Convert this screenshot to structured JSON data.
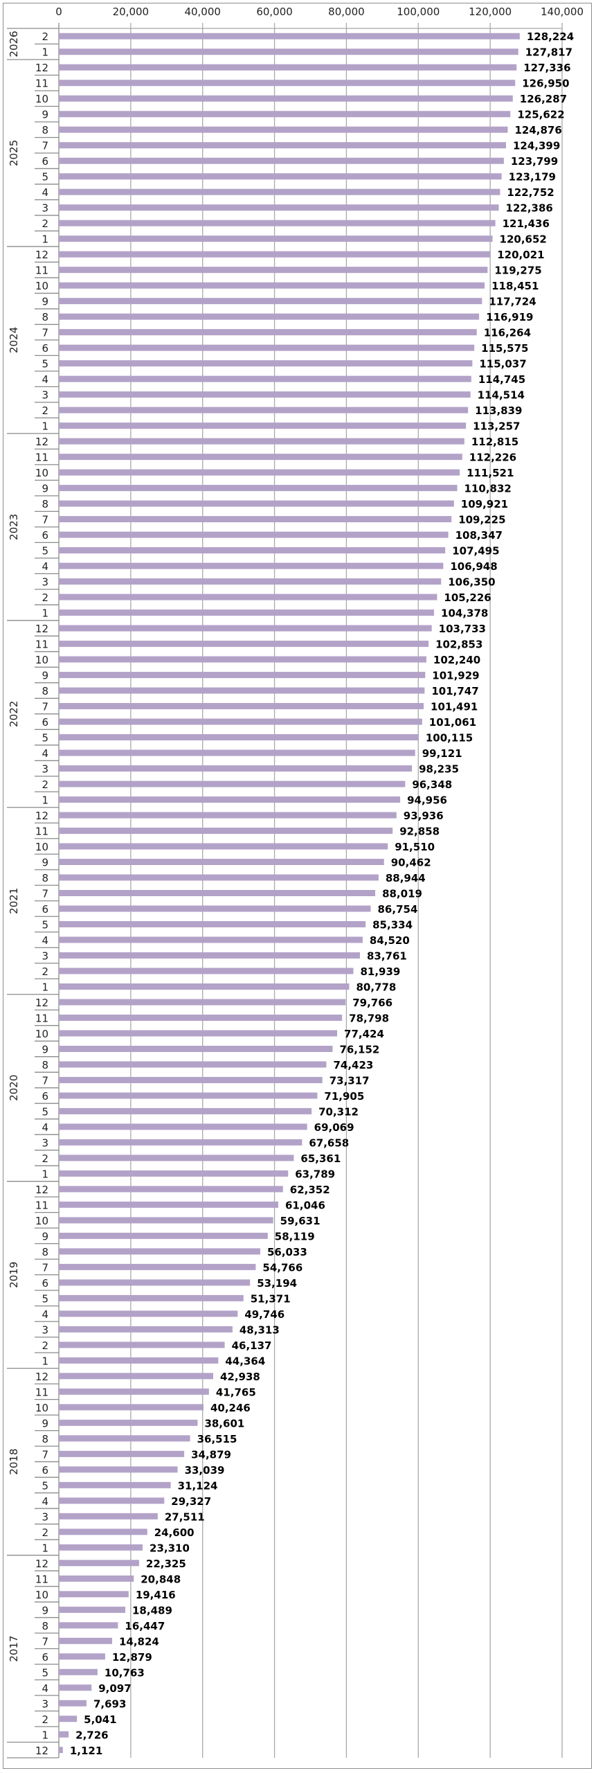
{
  "chart_data": {
    "type": "bar",
    "orientation": "horizontal",
    "title": "",
    "xlabel": "",
    "ylabel": "",
    "xlim": [
      0,
      140000
    ],
    "x_ticks": [
      "0",
      "20,000",
      "40,000",
      "60,000",
      "80,000",
      "100,000",
      "120,000",
      "140,000"
    ],
    "x_tick_values": [
      0,
      20000,
      40000,
      60000,
      80000,
      100000,
      120000,
      140000
    ],
    "grid": "vertical",
    "bar_color": "#b3a2c8",
    "groups": [
      {
        "year": "2026",
        "months": [
          "2",
          "1"
        ],
        "values": [
          128224,
          127817
        ],
        "labels": [
          "128,224",
          "127,817"
        ]
      },
      {
        "year": "2025",
        "months": [
          "12",
          "11",
          "10",
          "9",
          "8",
          "7",
          "6",
          "5",
          "4",
          "3",
          "2",
          "1"
        ],
        "values": [
          127336,
          126950,
          126287,
          125622,
          124876,
          124399,
          123799,
          123179,
          122752,
          122386,
          121436,
          120652
        ],
        "labels": [
          "127,336",
          "126,950",
          "126,287",
          "125,622",
          "124,876",
          "124,399",
          "123,799",
          "123,179",
          "122,752",
          "122,386",
          "121,436",
          "120,652"
        ]
      },
      {
        "year": "2024",
        "months": [
          "12",
          "11",
          "10",
          "9",
          "8",
          "7",
          "6",
          "5",
          "4",
          "3",
          "2",
          "1"
        ],
        "values": [
          120021,
          119275,
          118451,
          117724,
          116919,
          116264,
          115575,
          115037,
          114745,
          114514,
          113839,
          113257
        ],
        "labels": [
          "120,021",
          "119,275",
          "118,451",
          "117,724",
          "116,919",
          "116,264",
          "115,575",
          "115,037",
          "114,745",
          "114,514",
          "113,839",
          "113,257"
        ]
      },
      {
        "year": "2023",
        "months": [
          "12",
          "11",
          "10",
          "9",
          "8",
          "7",
          "6",
          "5",
          "4",
          "3",
          "2",
          "1"
        ],
        "values": [
          112815,
          112226,
          111521,
          110832,
          109921,
          109225,
          108347,
          107495,
          106948,
          106350,
          105226,
          104378
        ],
        "labels": [
          "112,815",
          "112,226",
          "111,521",
          "110,832",
          "109,921",
          "109,225",
          "108,347",
          "107,495",
          "106,948",
          "106,350",
          "105,226",
          "104,378"
        ]
      },
      {
        "year": "2022",
        "months": [
          "12",
          "11",
          "10",
          "9",
          "8",
          "7",
          "6",
          "5",
          "4",
          "3",
          "2",
          "1"
        ],
        "values": [
          103733,
          102853,
          102240,
          101929,
          101747,
          101491,
          101061,
          100115,
          99121,
          98235,
          96348,
          94956
        ],
        "labels": [
          "103,733",
          "102,853",
          "102,240",
          "101,929",
          "101,747",
          "101,491",
          "101,061",
          "100,115",
          "99,121",
          "98,235",
          "96,348",
          "94,956"
        ]
      },
      {
        "year": "2021",
        "months": [
          "12",
          "11",
          "10",
          "9",
          "8",
          "7",
          "6",
          "5",
          "4",
          "3",
          "2",
          "1"
        ],
        "values": [
          93936,
          92858,
          91510,
          90462,
          88944,
          88019,
          86754,
          85334,
          84520,
          83761,
          81939,
          80778
        ],
        "labels": [
          "93,936",
          "92,858",
          "91,510",
          "90,462",
          "88,944",
          "88,019",
          "86,754",
          "85,334",
          "84,520",
          "83,761",
          "81,939",
          "80,778"
        ]
      },
      {
        "year": "2020",
        "months": [
          "12",
          "11",
          "10",
          "9",
          "8",
          "7",
          "6",
          "5",
          "4",
          "3",
          "2",
          "1"
        ],
        "values": [
          79766,
          78798,
          77424,
          76152,
          74423,
          73317,
          71905,
          70312,
          69069,
          67658,
          65361,
          63789
        ],
        "labels": [
          "79,766",
          "78,798",
          "77,424",
          "76,152",
          "74,423",
          "73,317",
          "71,905",
          "70,312",
          "69,069",
          "67,658",
          "65,361",
          "63,789"
        ]
      },
      {
        "year": "2019",
        "months": [
          "12",
          "11",
          "10",
          "9",
          "8",
          "7",
          "6",
          "5",
          "4",
          "3",
          "2",
          "1"
        ],
        "values": [
          62352,
          61046,
          59631,
          58119,
          56033,
          54766,
          53194,
          51371,
          49746,
          48313,
          46137,
          44364
        ],
        "labels": [
          "62,352",
          "61,046",
          "59,631",
          "58,119",
          "56,033",
          "54,766",
          "53,194",
          "51,371",
          "49,746",
          "48,313",
          "46,137",
          "44,364"
        ]
      },
      {
        "year": "2018",
        "months": [
          "12",
          "11",
          "10",
          "9",
          "8",
          "7",
          "6",
          "5",
          "4",
          "3",
          "2",
          "1"
        ],
        "values": [
          42938,
          41765,
          40246,
          38601,
          36515,
          34879,
          33039,
          31124,
          29327,
          27511,
          24600,
          23310
        ],
        "labels": [
          "42,938",
          "41,765",
          "40,246",
          "38,601",
          "36,515",
          "34,879",
          "33,039",
          "31,124",
          "29,327",
          "27,511",
          "24,600",
          "23,310"
        ]
      },
      {
        "year": "2017",
        "months": [
          "12",
          "11",
          "10",
          "9",
          "8",
          "7",
          "6",
          "5",
          "4",
          "3",
          "2",
          "1"
        ],
        "values": [
          22325,
          20848,
          19416,
          18489,
          16447,
          14824,
          12879,
          10763,
          9097,
          7693,
          5041,
          2726
        ],
        "labels": [
          "22,325",
          "20,848",
          "19,416",
          "18,489",
          "16,447",
          "14,824",
          "12,879",
          "10,763",
          "9,097",
          "7,693",
          "5,041",
          "2,726"
        ]
      },
      {
        "year": "",
        "months": [
          "12"
        ],
        "values": [
          1121
        ],
        "labels": [
          "1,121"
        ]
      }
    ]
  }
}
